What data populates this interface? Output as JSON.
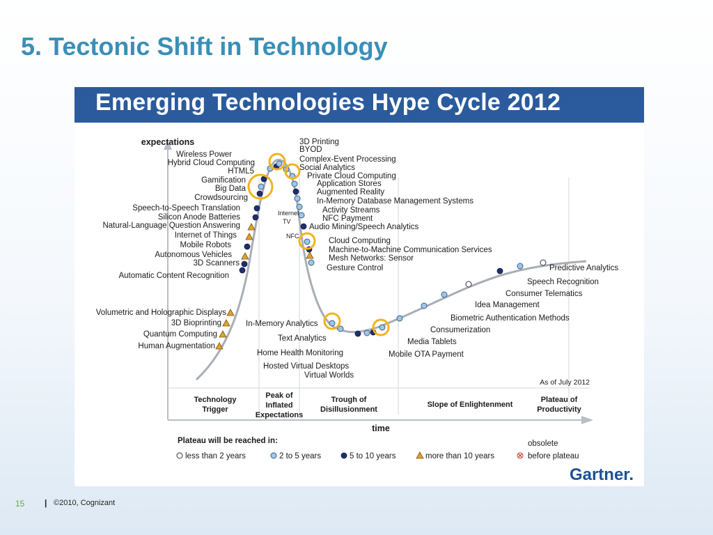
{
  "slide": {
    "title": "5. Tectonic Shift in Technology",
    "page_number": "15",
    "separator": "|",
    "copyright": "©2010, Cognizant"
  },
  "figure": {
    "banner_title": "Emerging Technologies Hype Cycle 2012",
    "y_axis_label": "expectations",
    "x_axis_label": "time",
    "as_of": "As of July 2012",
    "brand": "Gartner.",
    "phases": [
      [
        "Technology",
        "Trigger"
      ],
      [
        "Peak of",
        "Inflated",
        "Expectations"
      ],
      [
        "Trough of",
        "Disillusionment"
      ],
      [
        "Slope of Enlightenment"
      ],
      [
        "Plateau of",
        "Productivity"
      ]
    ],
    "legend": {
      "title": "Plateau will be reached in:",
      "items": [
        {
          "label": "less than 2 years",
          "marker": "circle-white"
        },
        {
          "label": "2 to 5 years",
          "marker": "circle-light-blue"
        },
        {
          "label": "5 to 10 years",
          "marker": "circle-dark-blue"
        },
        {
          "label": "more than 10 years",
          "marker": "triangle-orange"
        },
        {
          "label": "obsolete before plateau",
          "marker": "circle-x-red"
        }
      ],
      "obsolete_line1": "obsolete",
      "obsolete_line2": "before plateau"
    },
    "side_labels": [
      "Internet",
      "TV",
      "NFC"
    ],
    "technologies": [
      {
        "name": "Wireless Power",
        "category": "5 to 10 years"
      },
      {
        "name": "Hybrid Cloud Computing",
        "category": "2 to 5 years"
      },
      {
        "name": "HTML5",
        "category": "2 to 5 years"
      },
      {
        "name": "Gamification",
        "category": "5 to 10 years"
      },
      {
        "name": "Big Data",
        "category": "2 to 5 years"
      },
      {
        "name": "Crowdsourcing",
        "category": "5 to 10 years"
      },
      {
        "name": "Speech-to-Speech Translation",
        "category": "5 to 10 years"
      },
      {
        "name": "Silicon Anode Batteries",
        "category": "5 to 10 years"
      },
      {
        "name": "Natural-Language Question Answering",
        "category": "more than 10 years"
      },
      {
        "name": "Internet of Things",
        "category": "more than 10 years"
      },
      {
        "name": "Mobile Robots",
        "category": "5 to 10 years"
      },
      {
        "name": "Autonomous Vehicles",
        "category": "more than 10 years"
      },
      {
        "name": "3D Scanners",
        "category": "5 to 10 years"
      },
      {
        "name": "Automatic Content Recognition",
        "category": "5 to 10 years"
      },
      {
        "name": "Volumetric and Holographic Displays",
        "category": "more than 10 years"
      },
      {
        "name": "3D Bioprinting",
        "category": "more than 10 years"
      },
      {
        "name": "Quantum Computing",
        "category": "more than 10 years"
      },
      {
        "name": "Human Augmentation",
        "category": "more than 10 years"
      },
      {
        "name": "3D Printing",
        "category": "5 to 10 years"
      },
      {
        "name": "BYOD",
        "category": "2 to 5 years"
      },
      {
        "name": "Complex-Event Processing",
        "category": "5 to 10 years"
      },
      {
        "name": "Social Analytics",
        "category": "2 to 5 years"
      },
      {
        "name": "Private Cloud Computing",
        "category": "2 to 5 years"
      },
      {
        "name": "Application Stores",
        "category": "2 to 5 years"
      },
      {
        "name": "Augmented Reality",
        "category": "5 to 10 years"
      },
      {
        "name": "In-Memory Database Management Systems",
        "category": "2 to 5 years"
      },
      {
        "name": "Activity Streams",
        "category": "2 to 5 years"
      },
      {
        "name": "NFC Payment",
        "category": "2 to 5 years"
      },
      {
        "name": "Audio Mining/Speech Analytics",
        "category": "5 to 10 years"
      },
      {
        "name": "Cloud Computing",
        "category": "2 to 5 years"
      },
      {
        "name": "Machine-to-Machine Communication Services",
        "category": "5 to 10 years"
      },
      {
        "name": "Mesh Networks: Sensor",
        "category": "more than 10 years"
      },
      {
        "name": "Gesture Control",
        "category": "2 to 5 years"
      },
      {
        "name": "In-Memory Analytics",
        "category": "2 to 5 years"
      },
      {
        "name": "Text Analytics",
        "category": "2 to 5 years"
      },
      {
        "name": "Home Health Monitoring",
        "category": "5 to 10 years"
      },
      {
        "name": "Hosted Virtual Desktops",
        "category": "2 to 5 years"
      },
      {
        "name": "Virtual Worlds",
        "category": "5 to 10 years"
      },
      {
        "name": "Media Tablets",
        "category": "2 to 5 years"
      },
      {
        "name": "Mobile OTA Payment",
        "category": "2 to 5 years"
      },
      {
        "name": "Consumerization",
        "category": "2 to 5 years"
      },
      {
        "name": "Biometric Authentication Methods",
        "category": "2 to 5 years"
      },
      {
        "name": "Idea Management",
        "category": "less than 2 years"
      },
      {
        "name": "Consumer Telematics",
        "category": "5 to 10 years"
      },
      {
        "name": "Speech Recognition",
        "category": "2 to 5 years"
      },
      {
        "name": "Predictive Analytics",
        "category": "less than 2 years"
      }
    ]
  },
  "colors": {
    "title": "#3a8fb7",
    "banner": "#2b5b9c",
    "curve": "#a8aeb6",
    "dark_marker": "#1f2f6e",
    "light_marker": "#9fc6e6",
    "triangle": "#e2a12c",
    "highlight_ring": "#f2b31b",
    "footer_page": "#6aaa3a"
  }
}
